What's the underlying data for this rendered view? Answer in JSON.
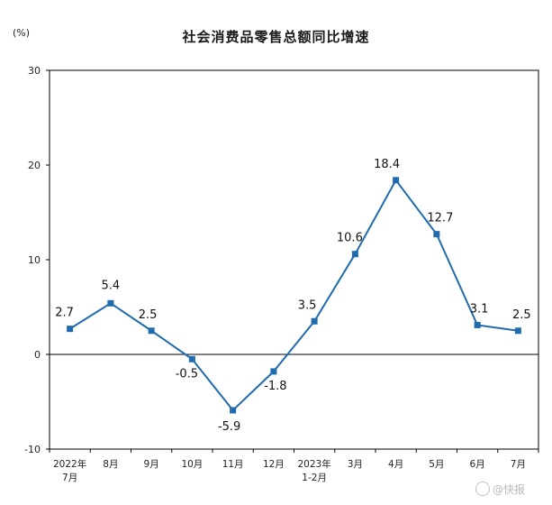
{
  "chart_data": {
    "type": "line",
    "title": "社会消费品零售总额同比增速",
    "unit_label": "(%)",
    "categories": [
      [
        "2022年",
        "7月"
      ],
      [
        "8月"
      ],
      [
        "9月"
      ],
      [
        "10月"
      ],
      [
        "11月"
      ],
      [
        "12月"
      ],
      [
        "2023年",
        "1-2月"
      ],
      [
        "3月"
      ],
      [
        "4月"
      ],
      [
        "5月"
      ],
      [
        "6月"
      ],
      [
        "7月"
      ]
    ],
    "values": [
      2.7,
      5.4,
      2.5,
      -0.5,
      -5.9,
      -1.8,
      3.5,
      10.6,
      18.4,
      12.7,
      3.1,
      2.5
    ],
    "data_labels": [
      "2.7",
      "5.4",
      "2.5",
      "-0.5",
      "-5.9",
      "-1.8",
      "3.5",
      "10.6",
      "18.4",
      "12.7",
      "3.1",
      "2.5"
    ],
    "ylim": [
      -10,
      30
    ],
    "yticks": [
      -10,
      0,
      10,
      20,
      30
    ],
    "xlabel": "",
    "ylabel": "",
    "grid": false,
    "series_color": "#1f6bad"
  },
  "watermark": {
    "text": "@快报",
    "icon": "weibo-icon"
  }
}
